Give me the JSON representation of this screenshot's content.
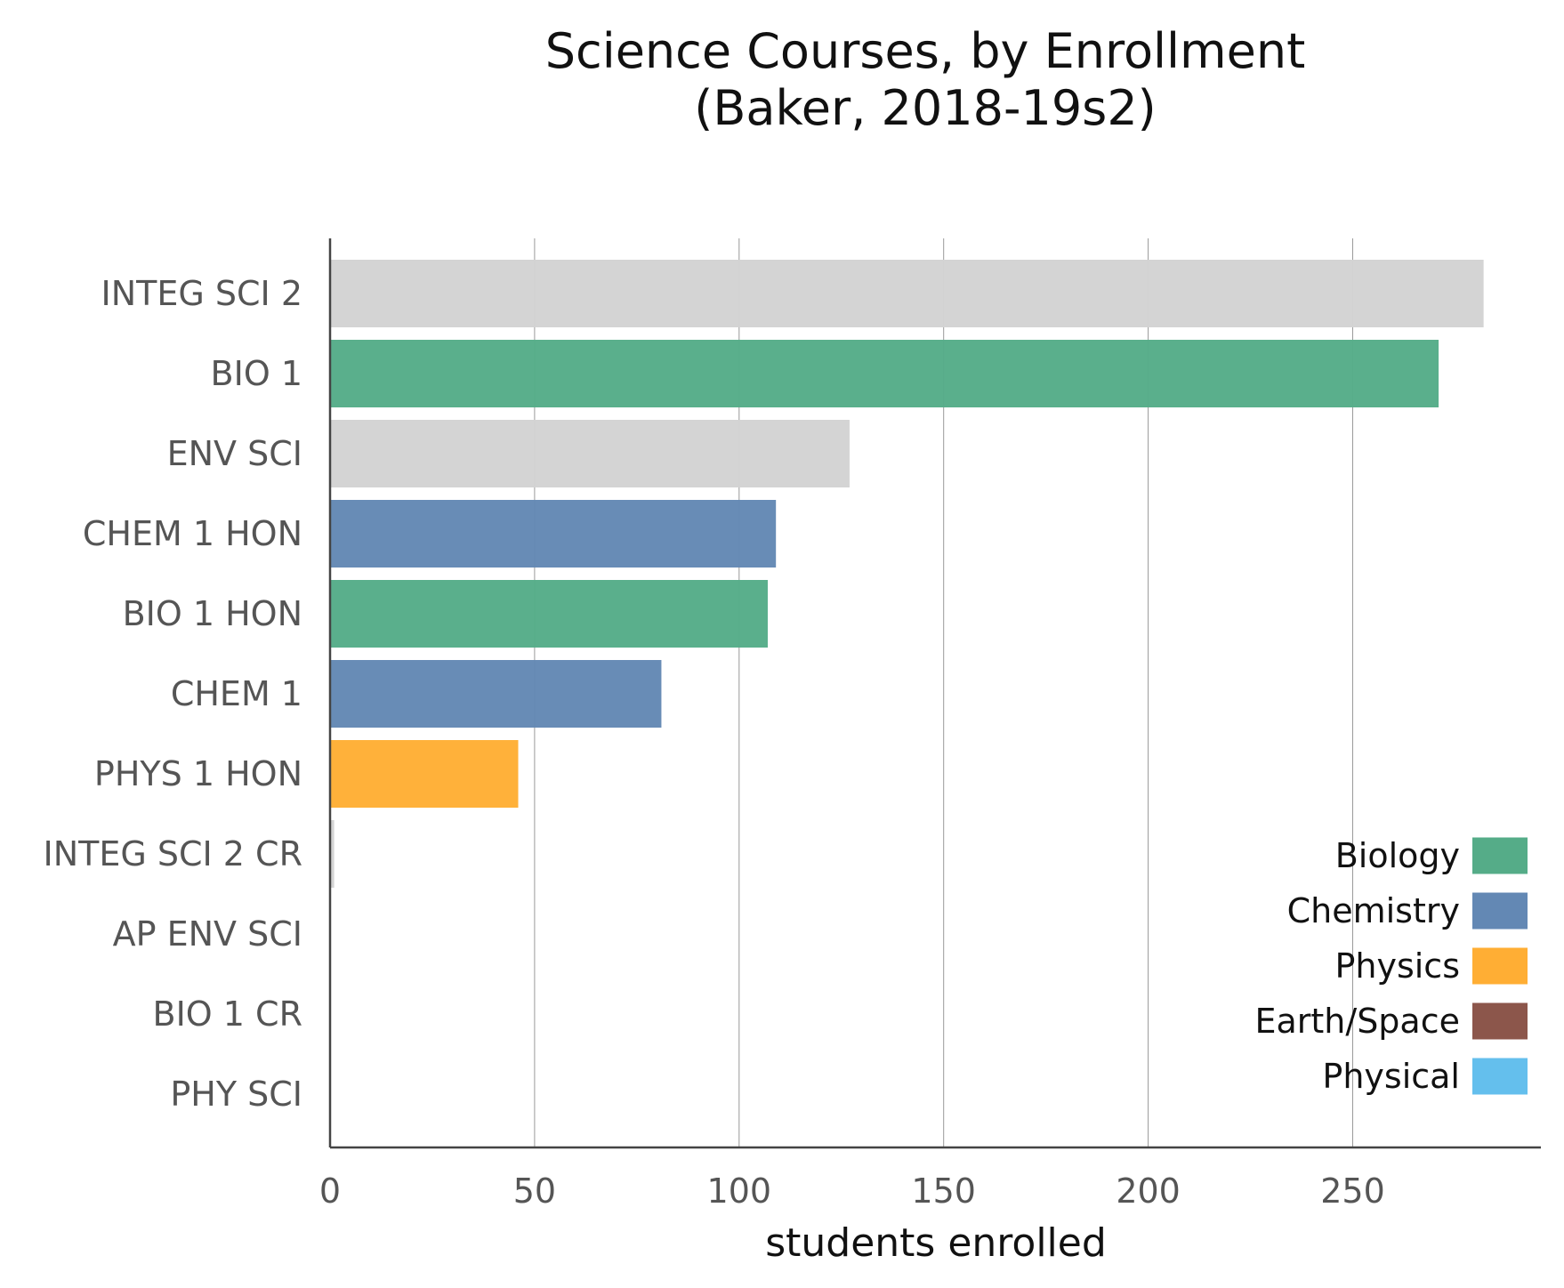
{
  "chart_data": {
    "type": "bar",
    "orientation": "horizontal",
    "title_lines": [
      "Science Courses, by Enrollment",
      "(Baker, 2018-19s2)"
    ],
    "xlabel": "students enrolled",
    "ylabel": "",
    "xlim": [
      0,
      296
    ],
    "xticks": [
      0,
      50,
      100,
      150,
      200,
      250
    ],
    "grid": true,
    "legend_position": "bottom-right",
    "categories": [
      "INTEG SCI 2",
      "BIO 1",
      "ENV SCI",
      "CHEM 1 HON",
      "BIO 1 HON",
      "CHEM 1",
      "PHYS 1 HON",
      "INTEG SCI 2 CR",
      "AP ENV SCI",
      "BIO 1 CR",
      "PHY SCI"
    ],
    "values": [
      282,
      271,
      127,
      109,
      107,
      81,
      46,
      1,
      0,
      0,
      0
    ],
    "bar_subjects": [
      "Other",
      "Biology",
      "Other",
      "Chemistry",
      "Biology",
      "Chemistry",
      "Physics",
      "Other",
      "Other",
      "Other",
      "Physical"
    ],
    "legend": [
      {
        "label": "Biology",
        "color": "#55ac88"
      },
      {
        "label": "Chemistry",
        "color": "#6388b4"
      },
      {
        "label": "Physics",
        "color": "#ffae34"
      },
      {
        "label": "Earth/Space",
        "color": "#8c564b"
      },
      {
        "label": "Physical",
        "color": "#64bfed"
      }
    ],
    "other_color": "#d3d3d3"
  }
}
